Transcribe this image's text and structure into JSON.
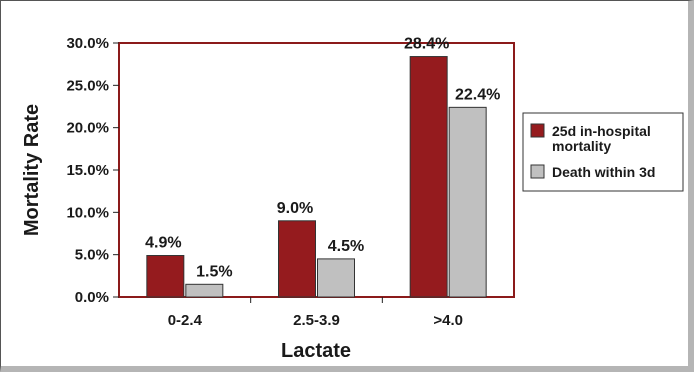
{
  "chart_data": {
    "type": "bar",
    "xlabel": "Lactate",
    "ylabel": "Mortality Rate",
    "categories": [
      "0-2.4",
      "2.5-3.9",
      ">4.0"
    ],
    "ylim": [
      0,
      30
    ],
    "yticks": [
      "0.0%",
      "5.0%",
      "10.0%",
      "15.0%",
      "20.0%",
      "25.0%",
      "30.0%"
    ],
    "series": [
      {
        "name": "25d in-hospital mortality",
        "values": [
          4.9,
          9.0,
          28.4
        ],
        "labels": [
          "4.9%",
          "9.0%",
          "28.4%"
        ],
        "color": "#951b1e"
      },
      {
        "name": "Death within 3d",
        "values": [
          1.5,
          4.5,
          22.4
        ],
        "labels": [
          "1.5%",
          "4.5%",
          "22.4%"
        ],
        "color": "#c0c0c0"
      }
    ],
    "legend": {
      "position": "right",
      "entries": [
        {
          "lines": [
            "25d in-hospital",
            "mortality"
          ]
        },
        {
          "lines": [
            "Death within 3d"
          ]
        }
      ]
    },
    "plot_border_color": "#8b1a1a",
    "grid": false
  }
}
